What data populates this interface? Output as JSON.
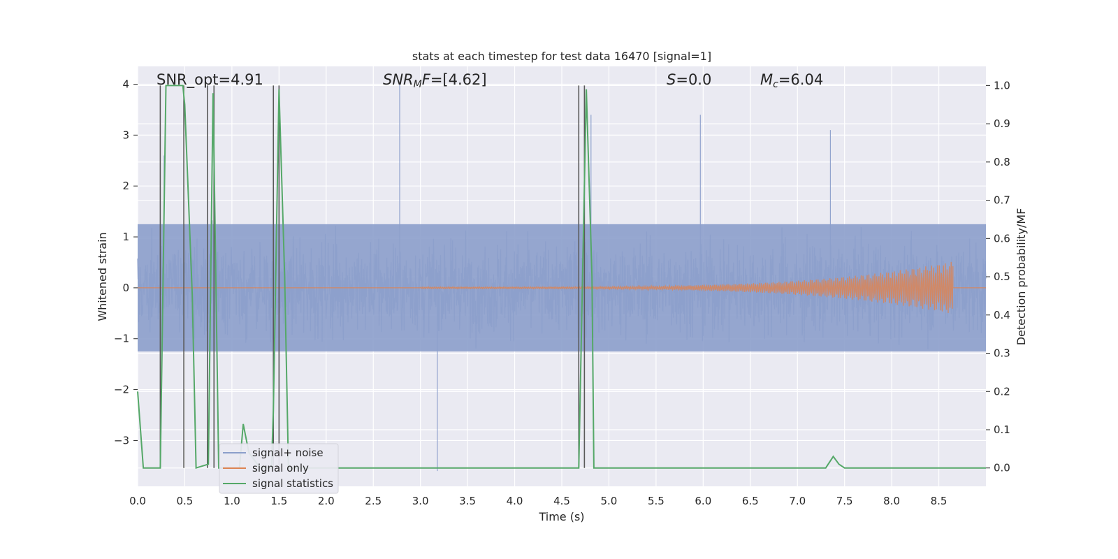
{
  "chart_data": {
    "type": "line",
    "title": "stats at each timestep for test data 16470 [signal=1]",
    "xlabel": "Time (s)",
    "ylabel": "Whitened strain",
    "ylabel_right": "Detection probability/MF",
    "xlim": [
      0.0,
      9.0
    ],
    "ylim": [
      -3.9,
      4.35
    ],
    "ylim_right": [
      -0.048,
      1.05
    ],
    "x_ticks": [
      "0.0",
      "0.5",
      "1.0",
      "1.5",
      "2.0",
      "2.5",
      "3.0",
      "3.5",
      "4.0",
      "4.5",
      "5.0",
      "5.5",
      "6.0",
      "6.5",
      "7.0",
      "7.5",
      "8.0",
      "8.5"
    ],
    "y_ticks": [
      {
        "value": 4,
        "label": "4"
      },
      {
        "value": 3,
        "label": "3"
      },
      {
        "value": 2,
        "label": "2"
      },
      {
        "value": 1,
        "label": "1"
      },
      {
        "value": 0,
        "label": "0"
      },
      {
        "value": -1,
        "label": "−1"
      },
      {
        "value": -2,
        "label": "−2"
      },
      {
        "value": -3,
        "label": "−3"
      }
    ],
    "y_right_ticks": [
      "0.0",
      "0.1",
      "0.2",
      "0.3",
      "0.4",
      "0.5",
      "0.6",
      "0.7",
      "0.8",
      "0.9",
      "1.0"
    ],
    "annotations": [
      {
        "id": "snr-opt",
        "label": "SNR_opt=4.91"
      },
      {
        "id": "snr-mf",
        "main": "SNR",
        "sub": "M",
        "rest": "F=[4.62]"
      },
      {
        "id": "s-stat",
        "main": "S",
        "rest": "=0.0"
      },
      {
        "id": "mc",
        "main": "M",
        "sub": "c",
        "rest": "=6.04"
      }
    ],
    "legend": {
      "position": "lower-left",
      "entries": [
        "signal+ noise",
        "signal only",
        "signal statistics"
      ]
    },
    "grid": true,
    "colors": {
      "noise": "#8c9fcb",
      "signal": "#dd8452",
      "stats": "#55a868",
      "vlines": "#5a5a5a",
      "background": "#eaeaf2",
      "grid": "#ffffff"
    },
    "series": [
      {
        "name": "signal+ noise",
        "axis": "left",
        "description_free": true,
        "amplitude_envelope": {
          "typical_max": 2.2,
          "typical_min": -2.3,
          "peaks_x": [
            2.78,
            0.28,
            3.18,
            5.97,
            7.35,
            4.81
          ],
          "peaks_y": [
            4.0,
            2.6,
            -3.6,
            3.4,
            3.1,
            3.4
          ]
        }
      },
      {
        "name": "signal only",
        "axis": "left",
        "chirp": {
          "start_x": 3.0,
          "end_x": 8.65,
          "max_amplitude": 0.5
        }
      },
      {
        "name": "signal statistics",
        "axis": "right",
        "x": [
          0.0,
          0.06,
          0.24,
          0.3,
          0.48,
          0.5,
          0.58,
          0.62,
          0.75,
          0.8,
          0.86,
          1.08,
          1.12,
          1.18,
          1.3,
          1.42,
          1.44,
          1.5,
          1.56,
          1.6,
          2.0,
          4.0,
          4.68,
          4.72,
          4.76,
          4.82,
          4.84,
          5.0,
          7.0,
          7.3,
          7.38,
          7.44,
          7.5,
          9.0
        ],
        "y": [
          0.2,
          0.0,
          0.0,
          1.0,
          1.0,
          0.95,
          0.45,
          0.0,
          0.01,
          0.98,
          0.0,
          0.0,
          0.115,
          0.04,
          0.0,
          0.0,
          0.15,
          0.99,
          0.5,
          0.0,
          0.0,
          0.0,
          0.0,
          0.5,
          0.99,
          0.5,
          0.0,
          0.0,
          0.0,
          0.0,
          0.03,
          0.01,
          0.0,
          0.0
        ]
      }
    ],
    "vlines_x": [
      0.24,
      0.49,
      0.74,
      0.81,
      1.44,
      1.5,
      4.68,
      4.74
    ]
  }
}
